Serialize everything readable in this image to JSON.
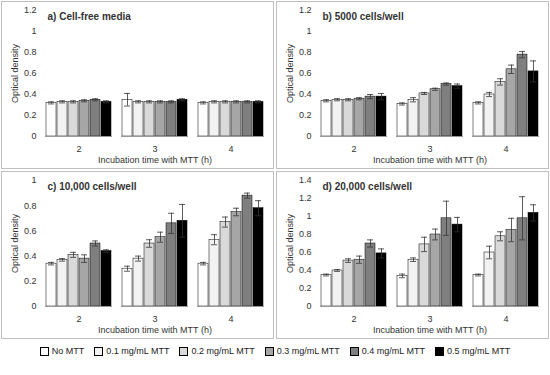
{
  "chart_data": [
    {
      "type": "bar",
      "title": "a) Cell-free media",
      "xlabel": "Incubation time with MTT (h)",
      "ylabel": "Optical density",
      "categories": [
        "2",
        "3",
        "4"
      ],
      "ylim": [
        0,
        1.2
      ],
      "yticks": [
        0,
        0.2,
        0.4,
        0.6,
        0.8,
        1,
        1.2
      ],
      "grid": false,
      "series": [
        {
          "name": "No MTT",
          "color": "#ffffff",
          "values": [
            0.32,
            0.35,
            0.32
          ],
          "errors": [
            0.01,
            0.06,
            0.01
          ]
        },
        {
          "name": "0.1 mg/mL MTT",
          "color": "#f2f2f2",
          "values": [
            0.33,
            0.33,
            0.33
          ],
          "errors": [
            0.01,
            0.01,
            0.01
          ]
        },
        {
          "name": "0.2 mg/mL MTT",
          "color": "#d9d9d9",
          "values": [
            0.33,
            0.33,
            0.33
          ],
          "errors": [
            0.01,
            0.01,
            0.01
          ]
        },
        {
          "name": "0.3 mg/mL MTT",
          "color": "#a6a6a6",
          "values": [
            0.34,
            0.33,
            0.33
          ],
          "errors": [
            0.01,
            0.01,
            0.01
          ]
        },
        {
          "name": "0.4 mg/mL MTT",
          "color": "#7f7f7f",
          "values": [
            0.35,
            0.33,
            0.33
          ],
          "errors": [
            0.01,
            0.01,
            0.01
          ]
        },
        {
          "name": "0.5 mg/mL MTT",
          "color": "#000000",
          "values": [
            0.33,
            0.35,
            0.33
          ],
          "errors": [
            0.01,
            0.01,
            0.01
          ]
        }
      ]
    },
    {
      "type": "bar",
      "title": "b) 5000 cells/well",
      "xlabel": "Incubation time with MTT (h)",
      "ylabel": "Optical density",
      "categories": [
        "2",
        "3",
        "4"
      ],
      "ylim": [
        0,
        1.2
      ],
      "yticks": [
        0,
        0.2,
        0.4,
        0.6,
        0.8,
        1,
        1.2
      ],
      "grid": false,
      "series": [
        {
          "name": "No MTT",
          "color": "#ffffff",
          "values": [
            0.34,
            0.31,
            0.32
          ],
          "errors": [
            0.01,
            0.01,
            0.01
          ]
        },
        {
          "name": "0.1 mg/mL MTT",
          "color": "#f2f2f2",
          "values": [
            0.35,
            0.35,
            0.4
          ],
          "errors": [
            0.01,
            0.02,
            0.02
          ]
        },
        {
          "name": "0.2 mg/mL MTT",
          "color": "#d9d9d9",
          "values": [
            0.35,
            0.41,
            0.52
          ],
          "errors": [
            0.01,
            0.01,
            0.03
          ]
        },
        {
          "name": "0.3 mg/mL MTT",
          "color": "#a6a6a6",
          "values": [
            0.36,
            0.45,
            0.64
          ],
          "errors": [
            0.01,
            0.01,
            0.04
          ]
        },
        {
          "name": "0.4 mg/mL MTT",
          "color": "#7f7f7f",
          "values": [
            0.38,
            0.5,
            0.78
          ],
          "errors": [
            0.02,
            0.01,
            0.03
          ]
        },
        {
          "name": "0.5 mg/mL MTT",
          "color": "#000000",
          "values": [
            0.38,
            0.48,
            0.62
          ],
          "errors": [
            0.03,
            0.02,
            0.1
          ]
        }
      ]
    },
    {
      "type": "bar",
      "title": "c) 10,000 cells/well",
      "xlabel": "Incubation time with MTT (h)",
      "ylabel": "Optical density",
      "categories": [
        "2",
        "3",
        "4"
      ],
      "ylim": [
        0,
        1
      ],
      "yticks": [
        0,
        0.2,
        0.4,
        0.6,
        0.8,
        1
      ],
      "grid": false,
      "series": [
        {
          "name": "No MTT",
          "color": "#ffffff",
          "values": [
            0.34,
            0.3,
            0.34
          ],
          "errors": [
            0.01,
            0.02,
            0.01
          ]
        },
        {
          "name": "0.1 mg/mL MTT",
          "color": "#f2f2f2",
          "values": [
            0.37,
            0.38,
            0.53
          ],
          "errors": [
            0.01,
            0.02,
            0.04
          ]
        },
        {
          "name": "0.2 mg/mL MTT",
          "color": "#d9d9d9",
          "values": [
            0.41,
            0.5,
            0.67
          ],
          "errors": [
            0.02,
            0.03,
            0.04
          ]
        },
        {
          "name": "0.3 mg/mL MTT",
          "color": "#a6a6a6",
          "values": [
            0.38,
            0.55,
            0.75
          ],
          "errors": [
            0.03,
            0.04,
            0.03
          ]
        },
        {
          "name": "0.4 mg/mL MTT",
          "color": "#7f7f7f",
          "values": [
            0.5,
            0.66,
            0.88
          ],
          "errors": [
            0.02,
            0.08,
            0.02
          ]
        },
        {
          "name": "0.5 mg/mL MTT",
          "color": "#000000",
          "values": [
            0.44,
            0.68,
            0.78
          ],
          "errors": [
            0.01,
            0.13,
            0.06
          ]
        }
      ]
    },
    {
      "type": "bar",
      "title": "d) 20,000 cells/well",
      "xlabel": "Incubation time with MTT (h)",
      "ylabel": "Optical density",
      "categories": [
        "2",
        "3",
        "4"
      ],
      "ylim": [
        0,
        1.4
      ],
      "yticks": [
        0,
        0.2,
        0.4,
        0.6,
        0.8,
        1,
        1.2,
        1.4
      ],
      "grid": false,
      "legend": "bottom",
      "series": [
        {
          "name": "No MTT",
          "color": "#ffffff",
          "values": [
            0.35,
            0.34,
            0.35
          ],
          "errors": [
            0.01,
            0.02,
            0.01
          ]
        },
        {
          "name": "0.1 mg/mL MTT",
          "color": "#f2f2f2",
          "values": [
            0.4,
            0.52,
            0.6
          ],
          "errors": [
            0.01,
            0.02,
            0.07
          ]
        },
        {
          "name": "0.2 mg/mL MTT",
          "color": "#d9d9d9",
          "values": [
            0.51,
            0.69,
            0.78
          ],
          "errors": [
            0.02,
            0.08,
            0.05
          ]
        },
        {
          "name": "0.3 mg/mL MTT",
          "color": "#a6a6a6",
          "values": [
            0.52,
            0.8,
            0.85
          ],
          "errors": [
            0.04,
            0.06,
            0.13
          ]
        },
        {
          "name": "0.4 mg/mL MTT",
          "color": "#7f7f7f",
          "values": [
            0.7,
            0.98,
            0.98
          ],
          "errors": [
            0.04,
            0.19,
            0.24
          ]
        },
        {
          "name": "0.5 mg/mL MTT",
          "color": "#000000",
          "values": [
            0.59,
            0.91,
            1.04
          ],
          "errors": [
            0.05,
            0.08,
            0.09
          ]
        }
      ]
    }
  ]
}
